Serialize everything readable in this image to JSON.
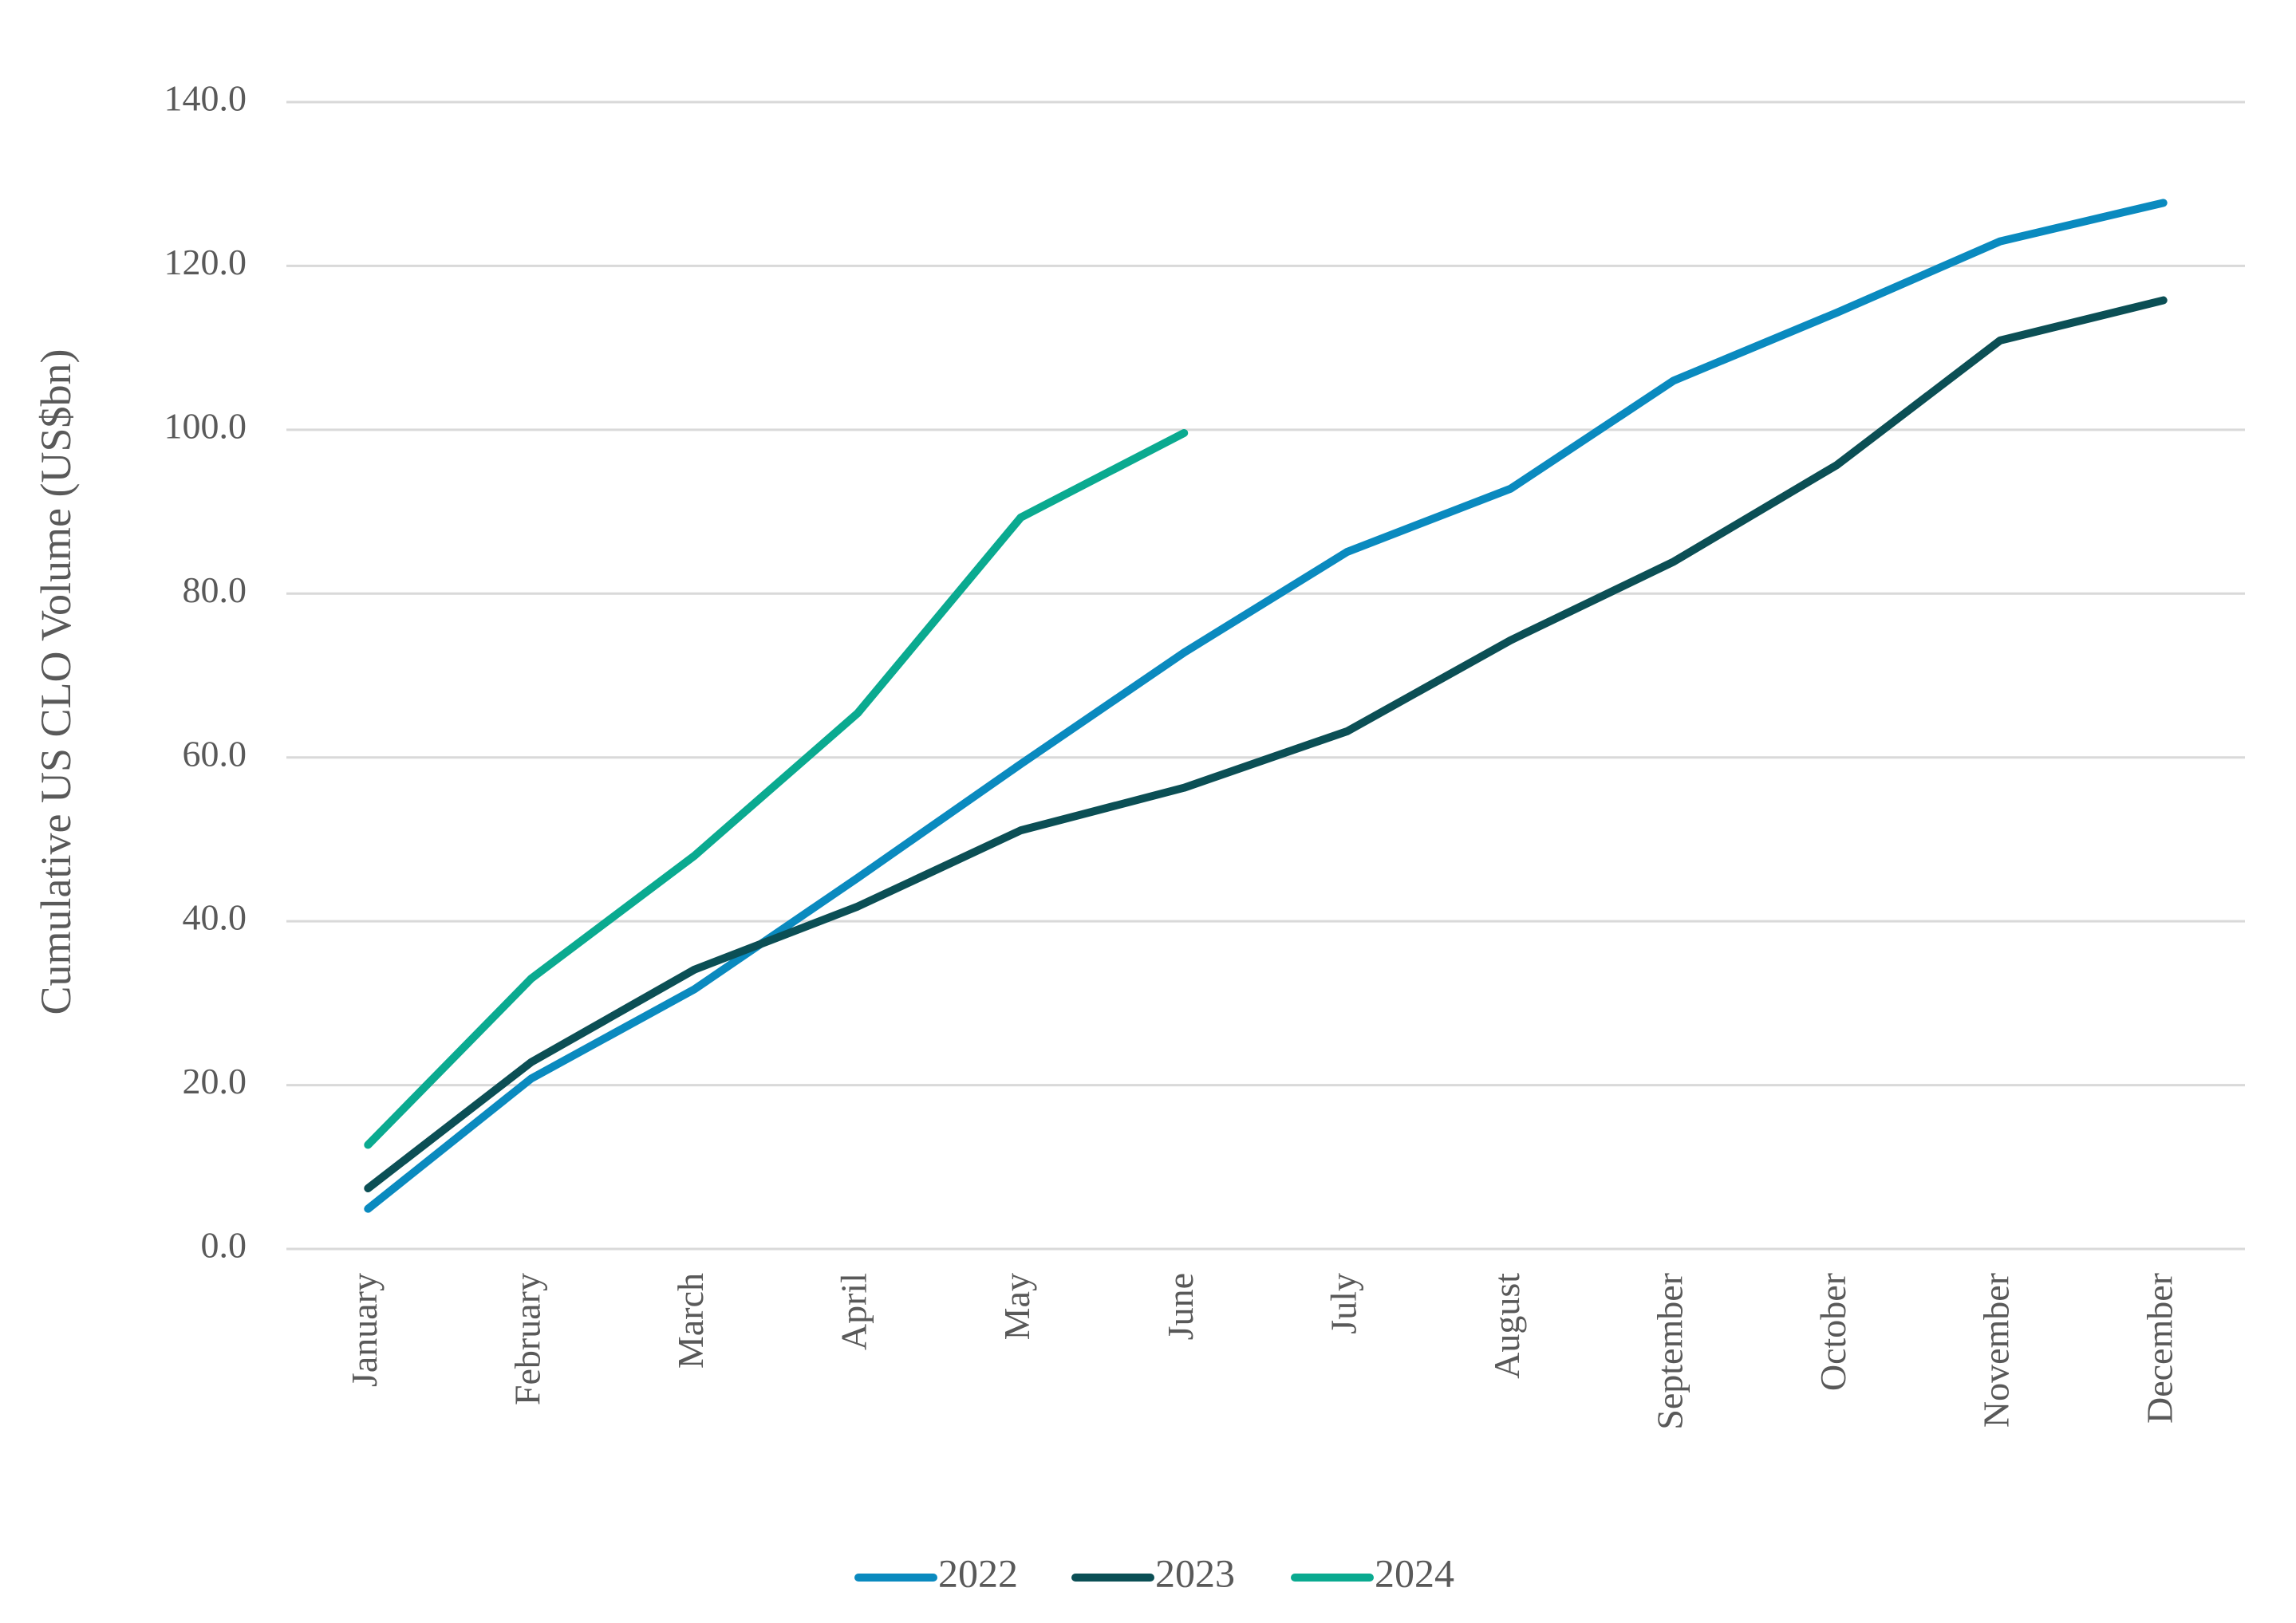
{
  "chart_data": {
    "type": "line",
    "y_label": "Cumulative US CLO Volume (US$bn)",
    "categories": [
      "January",
      "February",
      "March",
      "April",
      "May",
      "June",
      "July",
      "August",
      "September",
      "October",
      "November",
      "December"
    ],
    "series": [
      {
        "name": "2022",
        "color": "#0a8abf",
        "values": [
          4.9,
          20.8,
          31.7,
          45.3,
          59.2,
          72.8,
          85.1,
          92.8,
          106.0,
          114.3,
          123.0,
          127.7
        ]
      },
      {
        "name": "2023",
        "color": "#0b4f55",
        "values": [
          7.4,
          22.8,
          34.1,
          41.8,
          51.1,
          56.3,
          63.2,
          74.3,
          83.9,
          95.7,
          110.9,
          115.8
        ]
      },
      {
        "name": "2024",
        "color": "#0aaa90",
        "values": [
          12.7,
          33.0,
          48.0,
          65.4,
          89.3,
          99.6,
          null,
          null,
          null,
          null,
          null,
          null
        ]
      }
    ],
    "ylim": [
      0,
      140
    ],
    "yticks": [
      {
        "value": 0,
        "label": "0.0"
      },
      {
        "value": 20,
        "label": "20.0"
      },
      {
        "value": 40,
        "label": "40.0"
      },
      {
        "value": 60,
        "label": "60.0"
      },
      {
        "value": 80,
        "label": "80.0"
      },
      {
        "value": 100,
        "label": "100.0"
      },
      {
        "value": 120,
        "label": "120.0"
      },
      {
        "value": 140,
        "label": "140.0"
      }
    ],
    "grid": true,
    "legend": "bottom"
  }
}
